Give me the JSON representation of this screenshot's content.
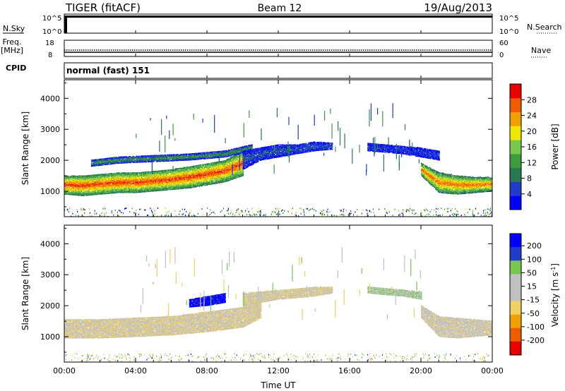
{
  "header": {
    "title": "TIGER (fitACF)",
    "beam": "Beam 12",
    "date": "19/Aug/2013"
  },
  "left_labels": {
    "nsky": "N.Sky",
    "freq": "Freq.",
    "freq_unit": "[MHz]",
    "cpid": "CPID"
  },
  "right_labels": {
    "nsearch": "N.Search",
    "nave": "Nave"
  },
  "mode": "normal (fast) 151",
  "strips": {
    "noise": {
      "left_ticks": [
        "10^5",
        "10^0"
      ],
      "right_ticks": [
        "10^5",
        "10^0"
      ]
    },
    "freq": {
      "left_ticks": [
        "18",
        "8"
      ],
      "right_ticks": [
        "60",
        "0"
      ]
    }
  },
  "colors": {
    "power": [
      "#0000ff",
      "#1e3cc8",
      "#287850",
      "#3c9b3c",
      "#78c850",
      "#f0e600",
      "#f0a000",
      "#f05a00",
      "#e60000"
    ],
    "velocity": [
      "#e60000",
      "#f05a00",
      "#f0a000",
      "#f0d060",
      "#c0c0c0",
      "#c0c0c0",
      "#78c850",
      "#1e3cc8",
      "#0000ff"
    ]
  },
  "chart_data": [
    {
      "type": "heatmap",
      "name": "power",
      "ylabel": "Slant Range [km]",
      "ylim": [
        180,
        4600
      ],
      "yticks": [
        1000,
        2000,
        3000,
        4000
      ],
      "xlim": [
        0,
        24
      ],
      "colorbar": {
        "label": "Power [dB]",
        "range": [
          0,
          32
        ],
        "ticks": [
          4,
          8,
          12,
          16,
          20,
          24,
          28
        ]
      },
      "bands": [
        {
          "x": [
            0,
            1,
            2,
            3,
            4,
            5,
            6,
            7,
            8,
            9,
            10
          ],
          "lo": [
            900,
            850,
            900,
            950,
            950,
            1000,
            1050,
            1100,
            1200,
            1300,
            1500
          ],
          "hi": [
            1500,
            1500,
            1550,
            1600,
            1600,
            1650,
            1700,
            1800,
            1900,
            2000,
            2300
          ],
          "peak": 26
        },
        {
          "x": [
            1.5,
            3,
            5,
            7,
            9,
            10.5
          ],
          "lo": [
            1800,
            1900,
            1950,
            2000,
            2100,
            2300
          ],
          "hi": [
            2000,
            2100,
            2150,
            2200,
            2300,
            2500
          ],
          "peak": 10
        },
        {
          "x": [
            10,
            11,
            12,
            13,
            14,
            15
          ],
          "lo": [
            1700,
            2000,
            2100,
            2200,
            2300,
            2350
          ],
          "hi": [
            2300,
            2400,
            2500,
            2500,
            2600,
            2550
          ],
          "peak": 6
        },
        {
          "x": [
            17,
            18,
            19,
            20,
            21
          ],
          "lo": [
            2300,
            2250,
            2200,
            2100,
            2000
          ],
          "hi": [
            2550,
            2500,
            2450,
            2400,
            2300
          ],
          "peak": 5
        },
        {
          "x": [
            20,
            21,
            22,
            23,
            24
          ],
          "lo": [
            1500,
            950,
            900,
            950,
            1000
          ],
          "hi": [
            1900,
            1600,
            1500,
            1450,
            1450
          ],
          "peak": 24
        }
      ]
    },
    {
      "type": "heatmap",
      "name": "velocity",
      "ylabel": "Slant Range [km]",
      "xlabel": "Time UT",
      "ylim": [
        180,
        4600
      ],
      "yticks": [
        1000,
        2000,
        3000,
        4000
      ],
      "xlim": [
        0,
        24
      ],
      "xticks": [
        "00:00",
        "04:00",
        "08:00",
        "12:00",
        "16:00",
        "20:00",
        "00:00"
      ],
      "xtick_hours": [
        0,
        4,
        8,
        12,
        16,
        20,
        24
      ],
      "colorbar": {
        "label": "Velocity [m s^-1]",
        "ticks": [
          "200",
          "100",
          "50",
          "15",
          "-15",
          "-50",
          "-100",
          "-200"
        ]
      },
      "bands": [
        {
          "x": [
            0,
            2,
            4,
            6,
            8,
            10,
            11
          ],
          "lo": [
            950,
            950,
            1000,
            1050,
            1150,
            1300,
            1600
          ],
          "hi": [
            1550,
            1550,
            1600,
            1650,
            1800,
            1950,
            2200
          ],
          "vel": -10
        },
        {
          "x": [
            10,
            12,
            14,
            15
          ],
          "lo": [
            2000,
            2200,
            2300,
            2400
          ],
          "hi": [
            2400,
            2500,
            2600,
            2600
          ],
          "vel": -10
        },
        {
          "x": [
            17,
            18,
            19,
            20
          ],
          "lo": [
            2400,
            2350,
            2300,
            2200
          ],
          "hi": [
            2600,
            2550,
            2500,
            2450
          ],
          "vel": 10
        },
        {
          "x": [
            20,
            21,
            22,
            23,
            24
          ],
          "lo": [
            1600,
            1000,
            950,
            1000,
            1050
          ],
          "hi": [
            2000,
            1650,
            1600,
            1550,
            1500
          ],
          "vel": -5
        },
        {
          "x": [
            7,
            8,
            9
          ],
          "lo": [
            1950,
            2000,
            2100
          ],
          "hi": [
            2200,
            2300,
            2400
          ],
          "vel": 180
        }
      ]
    }
  ]
}
